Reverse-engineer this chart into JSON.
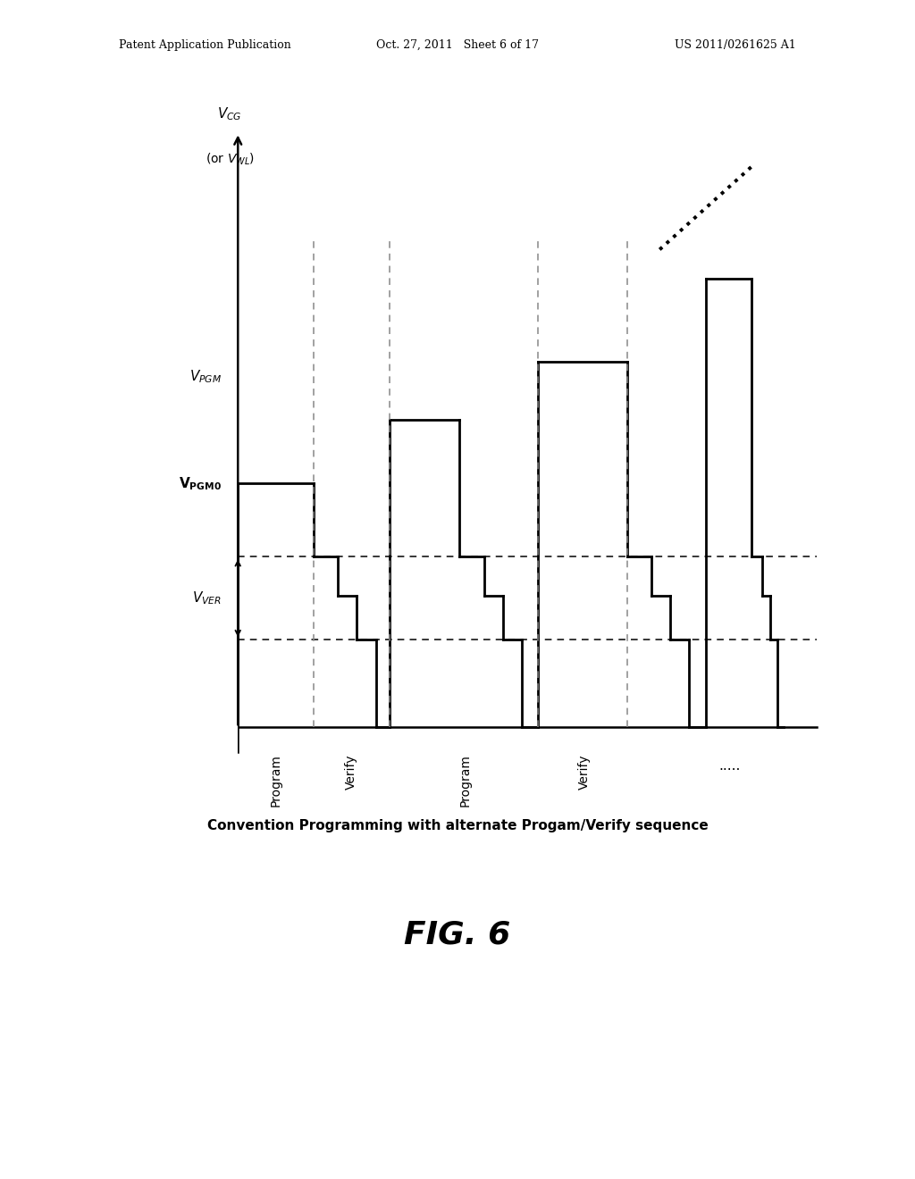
{
  "background_color": "#ffffff",
  "header_left": "Patent Application Publication",
  "header_center": "Oct. 27, 2011   Sheet 6 of 17",
  "header_right": "US 2011/0261625 A1",
  "figure_label": "FIG. 6",
  "caption": "Convention Programming with alternate Progam/Verify sequence",
  "v_pgm0": 5.0,
  "v_pgm": 7.2,
  "v_ver_upper": 3.5,
  "v_ver_mid": 2.7,
  "v_ver_lower": 1.8,
  "y_max": 12.5,
  "x_max": 11.0,
  "lw": 2.0,
  "verify_dashes_color": "#555555",
  "waveform_color": "#000000"
}
